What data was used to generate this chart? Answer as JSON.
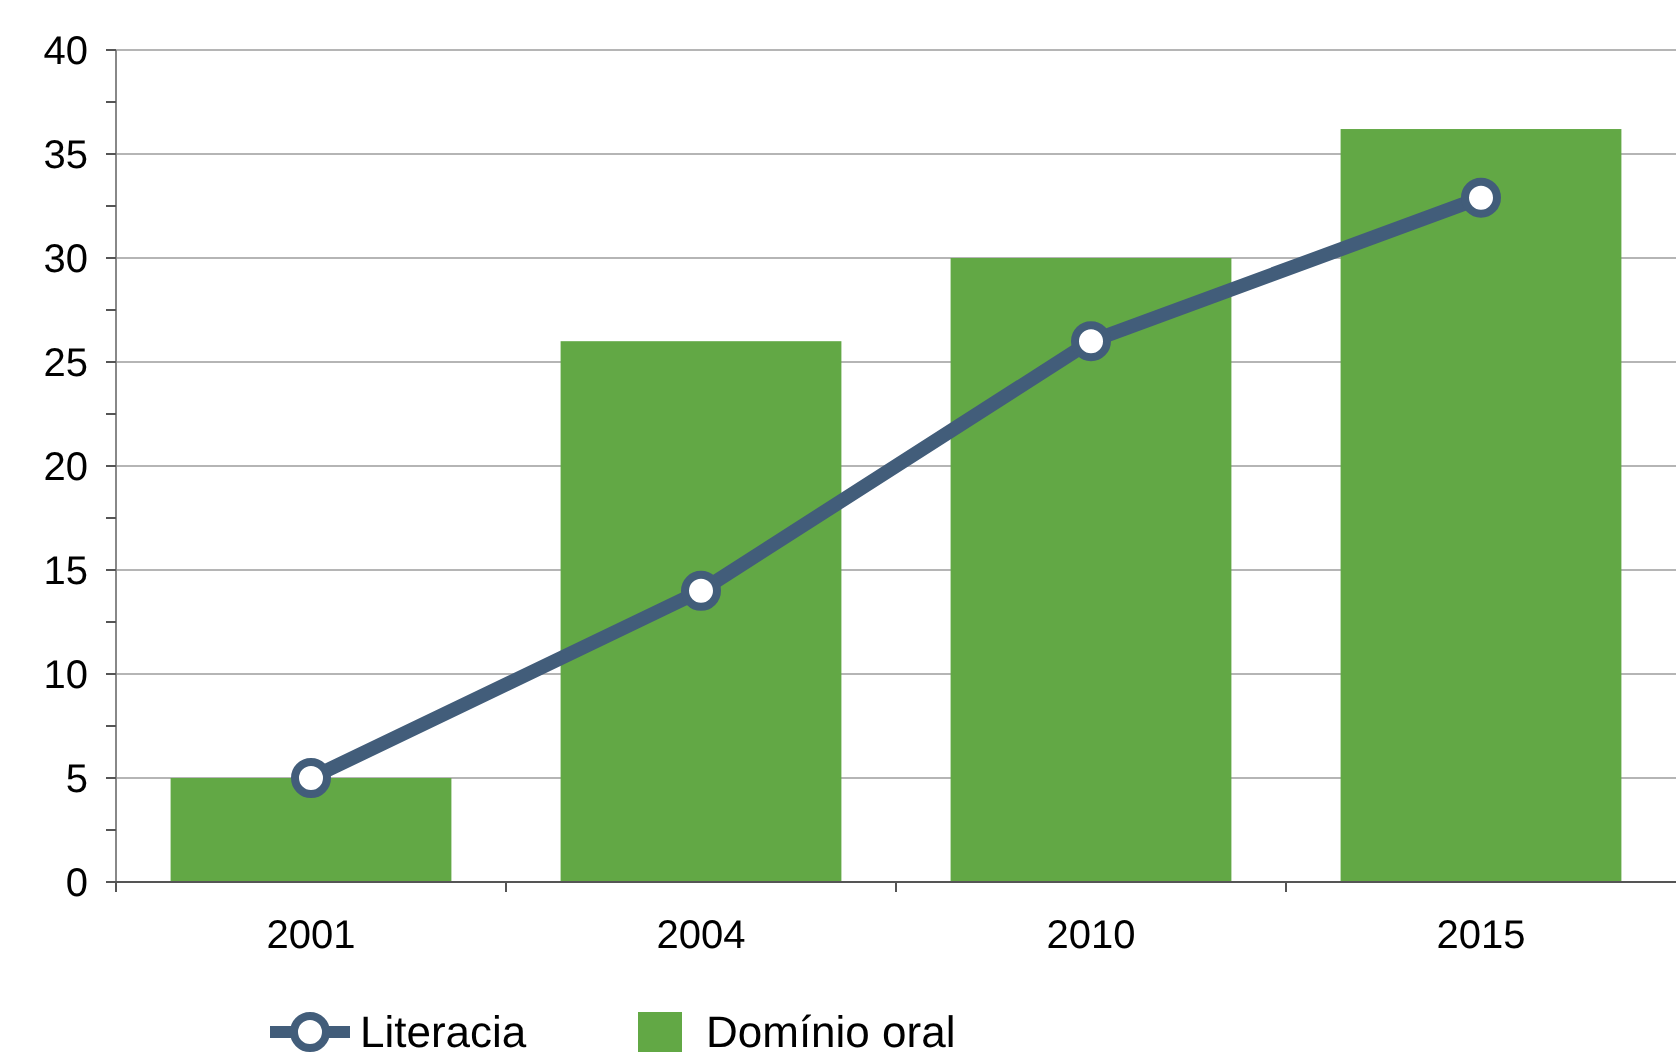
{
  "chart_data": {
    "type": "bar",
    "categories": [
      "2001",
      "2004",
      "2010",
      "2015"
    ],
    "series": [
      {
        "name": "Literacia",
        "type": "line",
        "color": "#425d7a",
        "values": [
          5,
          14,
          26,
          32.9
        ],
        "marker": "circle"
      },
      {
        "name": "Domínio oral",
        "color": "#62a845",
        "values": [
          5,
          26,
          30,
          36.2
        ]
      }
    ],
    "ylim": [
      0,
      40
    ],
    "yticks": [
      0,
      {
        "value": 2.5,
        "label": null
      },
      5,
      {
        "value": 7.5,
        "label": null
      },
      10,
      {
        "value": 12.5,
        "label": null
      },
      15,
      {
        "value": 17.5,
        "label": null
      },
      20,
      {
        "value": 22.5,
        "label": null
      },
      25,
      {
        "value": 27.5,
        "label": null
      },
      30,
      {
        "value": 32.5,
        "label": null
      },
      35,
      {
        "value": 37.5,
        "label": null
      },
      40
    ],
    "grid": "y",
    "legend": "bottom"
  }
}
